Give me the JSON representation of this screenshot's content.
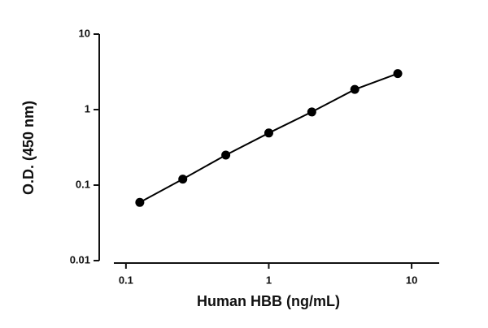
{
  "chart_data": {
    "type": "scatter",
    "x_label": "Human HBB (ng/mL)",
    "y_label": "O.D. (450 nm)",
    "x_scale": "log",
    "y_scale": "log",
    "xlim": [
      0.065,
      15.6
    ],
    "ylim": [
      0.01,
      10
    ],
    "xticks": [
      0.1,
      1,
      10
    ],
    "yticks": [
      0.01,
      0.1,
      1,
      10
    ],
    "connect": true,
    "series": [
      {
        "name": "Human HBB",
        "color": "#000000",
        "x": [
          0.125,
          0.25,
          0.5,
          1,
          2,
          4,
          8
        ],
        "values": [
          0.059,
          0.12,
          0.25,
          0.49,
          0.93,
          1.85,
          3.0
        ]
      }
    ]
  }
}
